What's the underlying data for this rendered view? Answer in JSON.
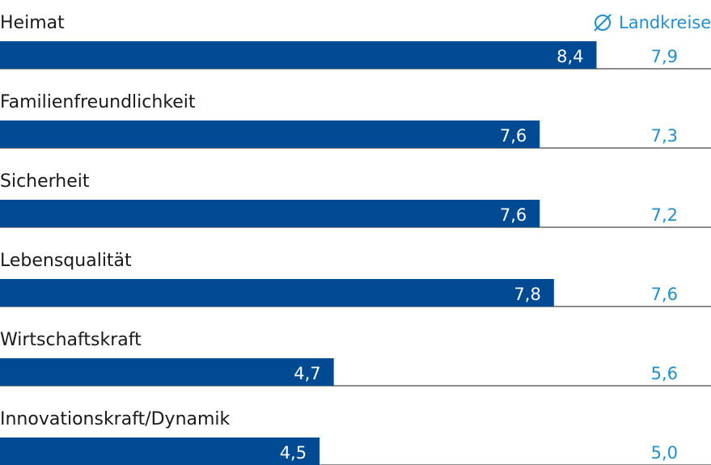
{
  "chart_data": {
    "type": "bar",
    "orientation": "horizontal",
    "categories": [
      "Heimat",
      "Familienfreundlichkeit",
      "Sicherheit",
      "Lebensqualität",
      "Wirtschaftskraft",
      "Innovationskraft/Dynamik"
    ],
    "values": [
      "8,4",
      "7,6",
      "7,6",
      "7,8",
      "4,7",
      "4,5"
    ],
    "values_numeric": [
      8.4,
      7.6,
      7.6,
      7.8,
      4.7,
      4.5
    ],
    "average_values": [
      "7,9",
      "7,3",
      "7,2",
      "7,6",
      "5,6",
      "5,0"
    ],
    "legend": {
      "symbol": "∅",
      "label": "Landkreise"
    },
    "xlim": [
      0,
      10
    ],
    "bar_color": "#004a93",
    "average_color": "#1f8fd1",
    "divider_color": "#1a1a1a"
  }
}
